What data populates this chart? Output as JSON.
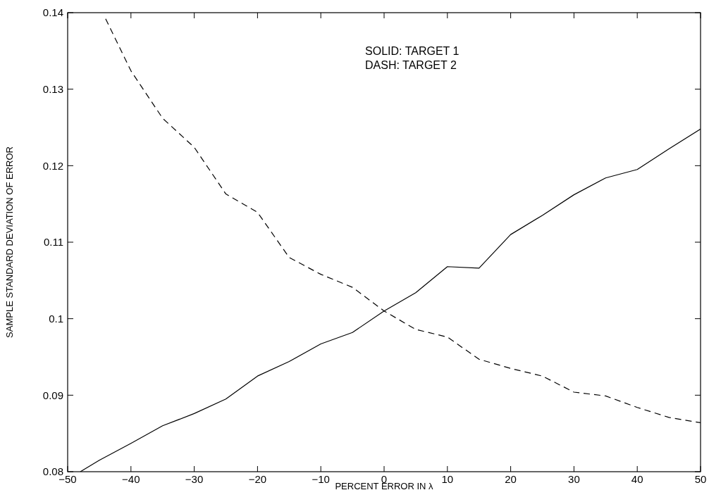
{
  "chart_data": {
    "type": "line",
    "xlabel": "PERCENT ERROR IN λ",
    "ylabel": "SAMPLE STANDARD DEVIATION OF ERROR",
    "xlim": [
      -50,
      50
    ],
    "ylim": [
      0.08,
      0.14
    ],
    "xticks": [
      -50,
      -40,
      -30,
      -20,
      -10,
      0,
      10,
      20,
      30,
      40,
      50
    ],
    "yticks": [
      0.08,
      0.09,
      0.1,
      0.11,
      0.12,
      0.13,
      0.14
    ],
    "grid": false,
    "series": [
      {
        "color": "#000000",
        "line_style": "solid",
        "x": [
          -48,
          -45,
          -40,
          -35,
          -30,
          -25,
          -20,
          -15,
          -10,
          -5,
          0,
          5,
          10,
          15,
          20,
          25,
          30,
          35,
          40,
          45,
          50
        ],
        "values": [
          0.08,
          0.0815,
          0.0837,
          0.086,
          0.0876,
          0.0895,
          0.0925,
          0.0944,
          0.0967,
          0.0982,
          0.101,
          0.1034,
          0.1068,
          0.1066,
          0.111,
          0.1135,
          0.1162,
          0.1184,
          0.1195,
          0.1222,
          0.1248
        ]
      },
      {
        "color": "#000000",
        "line_style": "dashed",
        "x": [
          -44,
          -40,
          -35,
          -30,
          -25,
          -20,
          -15,
          -10,
          -5,
          0,
          5,
          10,
          15,
          20,
          25,
          30,
          35,
          40,
          45,
          50
        ],
        "values": [
          0.1392,
          0.1324,
          0.1262,
          0.1224,
          0.1163,
          0.1139,
          0.108,
          0.1058,
          0.1041,
          0.101,
          0.0986,
          0.0976,
          0.0947,
          0.0935,
          0.0925,
          0.0904,
          0.0899,
          0.0884,
          0.0871,
          0.0864
        ]
      }
    ],
    "annotations": [
      "SOLID: TARGET 1",
      "DASH: TARGET 2"
    ]
  }
}
